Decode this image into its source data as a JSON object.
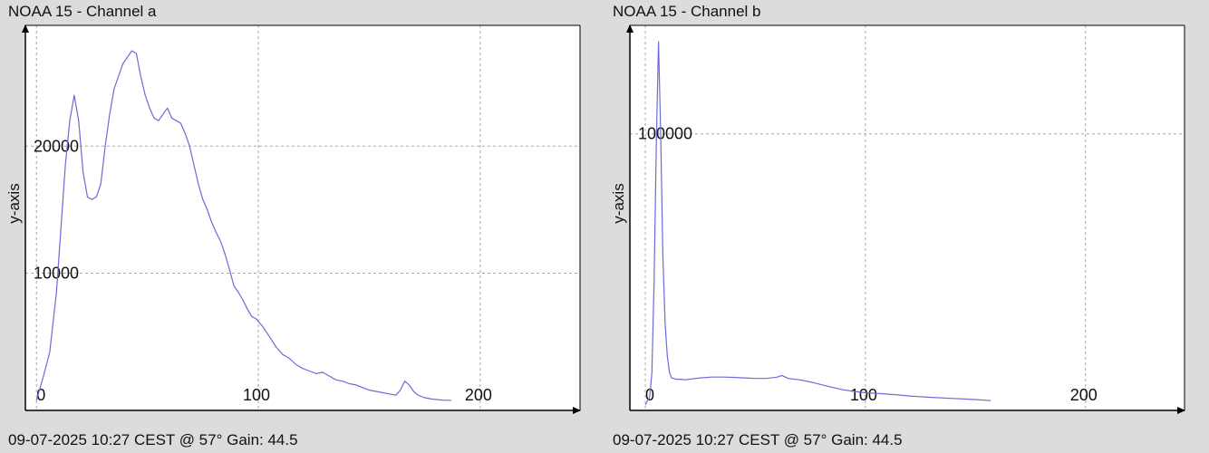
{
  "colors": {
    "background": "#dcdcdc",
    "plot_background": "#ffffff",
    "line": "#6b6bd6",
    "grid": "#a8a8a8",
    "axis": "#000000"
  },
  "panels": [
    {
      "title": "NOAA 15 - Channel a",
      "footer": "09-07-2025 10:27 CEST @ 57° Gain: 44.5"
    },
    {
      "title": "NOAA 15 - Channel b",
      "footer": "09-07-2025 10:27 CEST @ 57° Gain: 44.5"
    }
  ],
  "chart_data": [
    {
      "type": "line",
      "title": "NOAA 15 - Channel a",
      "xlabel": "",
      "ylabel": "y-axis",
      "xlim": [
        -5,
        245
      ],
      "ylim": [
        -800,
        29500
      ],
      "x_ticks": [
        0,
        100,
        200
      ],
      "y_ticks": [
        10000,
        20000
      ],
      "x_tick_labels": [
        "0",
        "100",
        "200"
      ],
      "y_tick_labels": [
        "10000",
        "20000"
      ],
      "grid": true,
      "series": [
        {
          "x": [
            0,
            3,
            6,
            9,
            11,
            13,
            15,
            17,
            19,
            21,
            23,
            25,
            27,
            29,
            31,
            33,
            35,
            37,
            39,
            41,
            43,
            45,
            47,
            49,
            51,
            53,
            55,
            57,
            59,
            61,
            63,
            65,
            67,
            69,
            71,
            73,
            75,
            77,
            79,
            81,
            83,
            85,
            87,
            89,
            91,
            93,
            95,
            97,
            99,
            102,
            105,
            108,
            111,
            114,
            117,
            120,
            123,
            126,
            129,
            132,
            135,
            138,
            141,
            144,
            147,
            150,
            153,
            156,
            159,
            162,
            164,
            166,
            168,
            170,
            172,
            175,
            178,
            181,
            184,
            187
          ],
          "y": [
            0,
            1800,
            3800,
            8500,
            13500,
            18500,
            22000,
            24000,
            22000,
            18000,
            16000,
            15800,
            16000,
            17000,
            20000,
            22500,
            24500,
            25500,
            26500,
            27000,
            27500,
            27300,
            25500,
            24000,
            23000,
            22200,
            22000,
            22500,
            23000,
            22200,
            22000,
            21800,
            21000,
            20000,
            18500,
            17000,
            15800,
            15000,
            14000,
            13200,
            12500,
            11500,
            10300,
            9000,
            8500,
            7900,
            7200,
            6600,
            6400,
            5800,
            5000,
            4200,
            3600,
            3300,
            2800,
            2500,
            2300,
            2100,
            2200,
            1900,
            1600,
            1500,
            1300,
            1200,
            1000,
            800,
            700,
            600,
            500,
            400,
            800,
            1500,
            1200,
            700,
            400,
            200,
            100,
            50,
            0,
            0
          ]
        }
      ]
    },
    {
      "type": "line",
      "title": "NOAA 15 - Channel b",
      "xlabel": "",
      "ylabel": "y-axis",
      "xlim": [
        -7,
        245
      ],
      "ylim": [
        -2000,
        140000
      ],
      "x_ticks": [
        0,
        100,
        200
      ],
      "y_ticks": [
        100000
      ],
      "x_tick_labels": [
        "0",
        "100",
        "200"
      ],
      "y_tick_labels": [
        "100000"
      ],
      "grid": true,
      "series": [
        {
          "x": [
            0,
            2,
            3,
            4,
            5,
            6,
            7,
            8,
            9,
            10,
            11,
            12,
            14,
            16,
            18,
            20,
            25,
            30,
            35,
            40,
            45,
            50,
            55,
            60,
            62,
            65,
            70,
            75,
            80,
            85,
            90,
            95,
            100,
            105,
            110,
            115,
            120,
            130,
            140,
            150,
            157
          ],
          "y": [
            0,
            3000,
            12000,
            45000,
            95000,
            134000,
            100000,
            55000,
            30000,
            18000,
            12000,
            10000,
            9500,
            9500,
            9300,
            9500,
            10000,
            10300,
            10300,
            10200,
            10000,
            9800,
            9800,
            10300,
            10900,
            9800,
            9300,
            8500,
            7500,
            6500,
            5600,
            5000,
            4500,
            4300,
            4000,
            3700,
            3300,
            2800,
            2400,
            2000,
            1600
          ]
        }
      ]
    }
  ]
}
